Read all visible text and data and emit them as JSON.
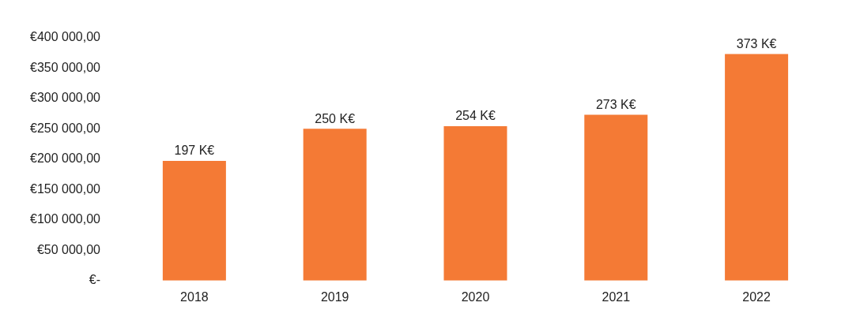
{
  "chart_data": {
    "type": "bar",
    "categories": [
      "2018",
      "2019",
      "2020",
      "2021",
      "2022"
    ],
    "values": [
      197000,
      250000,
      254000,
      273000,
      373000
    ],
    "value_labels": [
      "197 K€",
      "250 K€",
      "254 K€",
      "273 K€",
      "373 K€"
    ],
    "color": "#f47a35",
    "ylim": [
      0,
      400000
    ],
    "yticks": [
      {
        "value": 0,
        "label": "€-"
      },
      {
        "value": 50000,
        "label": "€50 000,00"
      },
      {
        "value": 100000,
        "label": "€100 000,00"
      },
      {
        "value": 150000,
        "label": "€150 000,00"
      },
      {
        "value": 200000,
        "label": "€200 000,00"
      },
      {
        "value": 250000,
        "label": "€250 000,00"
      },
      {
        "value": 300000,
        "label": "€300 000,00"
      },
      {
        "value": 350000,
        "label": "€350 000,00"
      },
      {
        "value": 400000,
        "label": "€400 000,00"
      }
    ],
    "grid": false,
    "legend": false
  }
}
